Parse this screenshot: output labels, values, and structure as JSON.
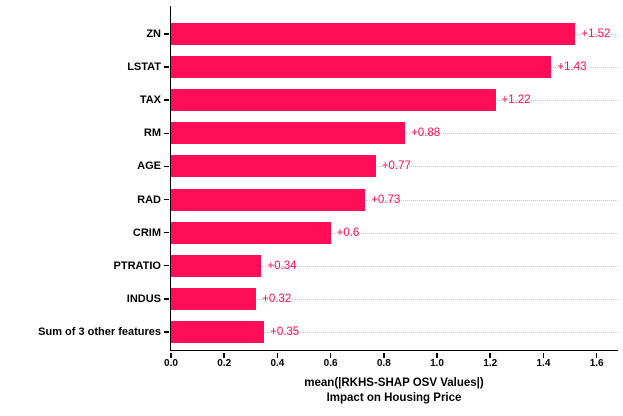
{
  "chart_data": {
    "type": "bar",
    "orientation": "horizontal",
    "title": "",
    "categories": [
      "ZN",
      "LSTAT",
      "TAX",
      "RM",
      "AGE",
      "RAD",
      "CRIM",
      "PTRATIO",
      "INDUS",
      "Sum of 3 other features"
    ],
    "values": [
      1.52,
      1.43,
      1.22,
      0.88,
      0.77,
      0.73,
      0.6,
      0.34,
      0.32,
      0.35
    ],
    "value_labels": [
      "+1.52",
      "+1.43",
      "+1.22",
      "+0.88",
      "+0.77",
      "+0.73",
      "+0.6",
      "+0.34",
      "+0.32",
      "+0.35"
    ],
    "x_ticks": [
      0.0,
      0.2,
      0.4,
      0.6,
      0.8,
      1.0,
      1.2,
      1.4,
      1.6
    ],
    "x_tick_labels": [
      "0.0",
      "0.2",
      "0.4",
      "0.6",
      "0.8",
      "1.0",
      "1.2",
      "1.4",
      "1.6"
    ],
    "xlim": [
      0,
      1.684
    ],
    "xlabel_line1": "mean(|RKHS-SHAP OSV Values|)",
    "xlabel_line2": "Impact on Housing Price",
    "ylabel": "",
    "legend": null,
    "grid": "horizontal-dotted",
    "colors": {
      "bar": "#ff0d57",
      "value_label": "#ff0d57",
      "gridline": "#c9c9c9",
      "axis": "#000000",
      "background": "#ffffff"
    }
  }
}
